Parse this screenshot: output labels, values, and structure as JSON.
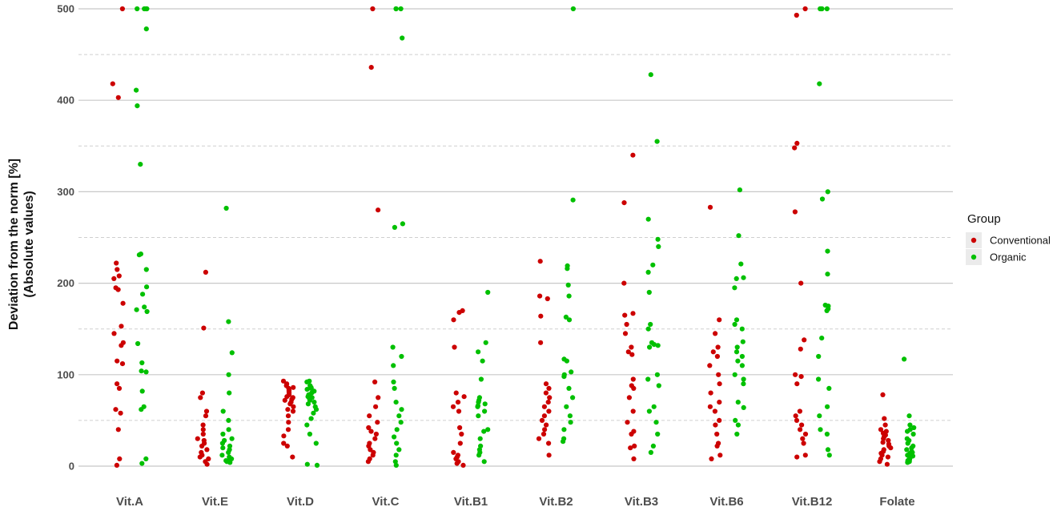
{
  "chart_data": {
    "type": "scatter",
    "title": "",
    "ylabel_line1": "Deviation from the norm [%]",
    "ylabel_line2": "(Absolute values)",
    "xlabel": "",
    "ylim": [
      0,
      500
    ],
    "yticks": [
      0,
      100,
      200,
      300,
      400,
      500
    ],
    "grid": "major solid, minor dashed",
    "legend": {
      "title": "Group",
      "position": "right"
    },
    "categories": [
      "Vit.A",
      "Vit.E",
      "Vit.D",
      "Vit.C",
      "Vit.B1",
      "Vit.B2",
      "Vit.B3",
      "Vit.B6",
      "Vit.B12",
      "Folate"
    ],
    "series": [
      {
        "name": "Conventional",
        "color": "#cc0000",
        "values": [
          [
            500,
            418,
            403,
            222,
            215,
            208,
            205,
            195,
            193,
            178,
            153,
            145,
            135,
            132,
            115,
            112,
            90,
            85,
            62,
            58,
            40,
            8,
            1
          ],
          [
            212,
            151,
            80,
            75,
            60,
            55,
            45,
            40,
            35,
            30,
            28,
            25,
            22,
            18,
            15,
            12,
            10,
            8,
            5,
            2
          ],
          [
            93,
            90,
            88,
            86,
            85,
            83,
            82,
            80,
            78,
            76,
            75,
            73,
            72,
            70,
            68,
            65,
            62,
            60,
            55,
            48,
            40,
            33,
            25,
            22,
            10
          ],
          [
            500,
            436,
            280,
            92,
            75,
            65,
            55,
            48,
            42,
            38,
            35,
            30,
            25,
            22,
            18,
            15,
            12,
            8,
            5
          ],
          [
            170,
            168,
            160,
            130,
            80,
            76,
            70,
            65,
            60,
            42,
            35,
            25,
            15,
            12,
            10,
            8,
            5,
            3,
            1
          ],
          [
            224,
            186,
            183,
            164,
            135,
            90,
            85,
            80,
            75,
            70,
            65,
            60,
            55,
            50,
            45,
            40,
            35,
            30,
            25,
            12
          ],
          [
            340,
            288,
            200,
            167,
            165,
            155,
            145,
            130,
            125,
            122,
            95,
            88,
            85,
            75,
            60,
            48,
            38,
            35,
            22,
            20,
            8
          ],
          [
            283,
            160,
            145,
            130,
            125,
            120,
            110,
            100,
            90,
            80,
            70,
            65,
            60,
            50,
            45,
            35,
            25,
            22,
            12,
            8
          ],
          [
            500,
            493,
            353,
            348,
            278,
            200,
            138,
            128,
            100,
            98,
            90,
            60,
            55,
            50,
            45,
            40,
            35,
            30,
            25,
            12,
            10
          ],
          [
            78,
            52,
            45,
            40,
            38,
            36,
            34,
            32,
            30,
            28,
            26,
            24,
            22,
            20,
            18,
            16,
            14,
            12,
            10,
            8,
            5,
            2
          ]
        ]
      },
      {
        "name": "Organic",
        "color": "#00c000",
        "values": [
          [
            500,
            500,
            500,
            500,
            478,
            411,
            394,
            330,
            232,
            231,
            215,
            196,
            188,
            174,
            171,
            169,
            134,
            113,
            104,
            103,
            82,
            65,
            62,
            8,
            3
          ],
          [
            282,
            158,
            124,
            100,
            80,
            60,
            50,
            40,
            35,
            30,
            28,
            25,
            22,
            20,
            18,
            15,
            12,
            10,
            8,
            7,
            6,
            5,
            4
          ],
          [
            93,
            92,
            88,
            86,
            85,
            84,
            82,
            80,
            78,
            76,
            75,
            74,
            72,
            70,
            68,
            65,
            62,
            58,
            52,
            45,
            35,
            25,
            2,
            1
          ],
          [
            500,
            500,
            500,
            468,
            265,
            261,
            130,
            120,
            110,
            92,
            85,
            70,
            62,
            55,
            48,
            40,
            32,
            25,
            18,
            12,
            5,
            1
          ],
          [
            190,
            135,
            125,
            115,
            95,
            75,
            72,
            70,
            68,
            66,
            65,
            60,
            55,
            40,
            38,
            30,
            22,
            18,
            15,
            12,
            5
          ],
          [
            500,
            291,
            219,
            216,
            198,
            186,
            163,
            160,
            117,
            115,
            103,
            100,
            98,
            85,
            75,
            65,
            55,
            48,
            40,
            30,
            27
          ],
          [
            428,
            355,
            270,
            248,
            240,
            220,
            212,
            190,
            155,
            150,
            135,
            133,
            132,
            130,
            100,
            95,
            88,
            65,
            60,
            48,
            35,
            22,
            15
          ],
          [
            302,
            252,
            221,
            206,
            205,
            195,
            160,
            155,
            150,
            136,
            130,
            125,
            120,
            115,
            110,
            100,
            95,
            90,
            70,
            64,
            50,
            45,
            35
          ],
          [
            500,
            500,
            500,
            500,
            418,
            300,
            292,
            235,
            210,
            176,
            175,
            172,
            170,
            140,
            120,
            95,
            85,
            65,
            55,
            40,
            35,
            18,
            12
          ],
          [
            117,
            55,
            45,
            42,
            40,
            38,
            35,
            30,
            28,
            25,
            22,
            20,
            18,
            16,
            15,
            14,
            13,
            12,
            11,
            10,
            9,
            8,
            7,
            6,
            5,
            4
          ]
        ]
      }
    ]
  }
}
